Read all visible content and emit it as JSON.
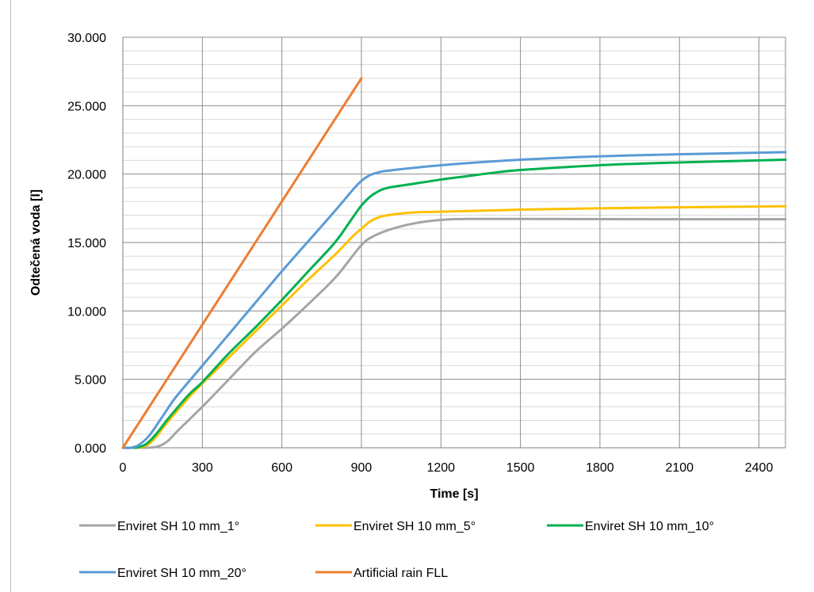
{
  "chart_data": {
    "type": "line",
    "title": "",
    "xlabel": "Time [s]",
    "ylabel": "Odtečená voda [l]",
    "xlim": [
      0,
      2500
    ],
    "ylim": [
      0,
      30000
    ],
    "x_ticks": [
      "0",
      "300",
      "600",
      "900",
      "1200",
      "1500",
      "1800",
      "2100",
      "2400"
    ],
    "x_tick_values": [
      0,
      300,
      600,
      900,
      1200,
      1500,
      1800,
      2100,
      2400
    ],
    "y_ticks": [
      "0.000",
      "5.000",
      "10.000",
      "15.000",
      "20.000",
      "25.000",
      "30.000"
    ],
    "y_tick_values": [
      0,
      5000,
      10000,
      15000,
      20000,
      25000,
      30000
    ],
    "grid": true,
    "legend_position": "bottom",
    "series": [
      {
        "name": "Enviret SH 10 mm_1°",
        "color": "#a5a5a5",
        "points": [
          [
            0,
            0
          ],
          [
            60,
            0
          ],
          [
            110,
            20
          ],
          [
            140,
            150
          ],
          [
            170,
            500
          ],
          [
            210,
            1300
          ],
          [
            300,
            3000
          ],
          [
            400,
            5000
          ],
          [
            500,
            7000
          ],
          [
            600,
            8700
          ],
          [
            700,
            10500
          ],
          [
            800,
            12400
          ],
          [
            870,
            14100
          ],
          [
            900,
            14800
          ],
          [
            930,
            15300
          ],
          [
            1000,
            15900
          ],
          [
            1100,
            16400
          ],
          [
            1200,
            16650
          ],
          [
            1300,
            16720
          ],
          [
            1500,
            16720
          ],
          [
            2000,
            16700
          ],
          [
            2500,
            16700
          ]
        ]
      },
      {
        "name": "Enviret SH 10 mm_5°",
        "color": "#ffc000",
        "points": [
          [
            0,
            0
          ],
          [
            40,
            0
          ],
          [
            70,
            50
          ],
          [
            100,
            300
          ],
          [
            130,
            900
          ],
          [
            170,
            1900
          ],
          [
            250,
            3700
          ],
          [
            300,
            4700
          ],
          [
            400,
            6600
          ],
          [
            500,
            8500
          ],
          [
            600,
            10400
          ],
          [
            700,
            12300
          ],
          [
            800,
            14100
          ],
          [
            870,
            15500
          ],
          [
            900,
            16000
          ],
          [
            930,
            16500
          ],
          [
            960,
            16800
          ],
          [
            1000,
            17000
          ],
          [
            1100,
            17200
          ],
          [
            1200,
            17250
          ],
          [
            1500,
            17400
          ],
          [
            2000,
            17550
          ],
          [
            2500,
            17650
          ]
        ]
      },
      {
        "name": "Enviret SH 10 mm_10°",
        "color": "#00b050",
        "points": [
          [
            0,
            0
          ],
          [
            40,
            0
          ],
          [
            60,
            50
          ],
          [
            90,
            300
          ],
          [
            130,
            1100
          ],
          [
            170,
            2100
          ],
          [
            250,
            3900
          ],
          [
            300,
            4800
          ],
          [
            400,
            6900
          ],
          [
            500,
            8800
          ],
          [
            600,
            10800
          ],
          [
            700,
            12900
          ],
          [
            800,
            15000
          ],
          [
            870,
            16900
          ],
          [
            900,
            17700
          ],
          [
            930,
            18300
          ],
          [
            960,
            18700
          ],
          [
            1000,
            19000
          ],
          [
            1100,
            19300
          ],
          [
            1200,
            19600
          ],
          [
            1300,
            19850
          ],
          [
            1400,
            20100
          ],
          [
            1500,
            20300
          ],
          [
            1800,
            20650
          ],
          [
            2100,
            20850
          ],
          [
            2500,
            21050
          ]
        ]
      },
      {
        "name": "Enviret SH 10 mm_20°",
        "color": "#5b9bd5",
        "points": [
          [
            0,
            0
          ],
          [
            30,
            0
          ],
          [
            60,
            200
          ],
          [
            100,
            900
          ],
          [
            150,
            2300
          ],
          [
            200,
            3700
          ],
          [
            300,
            6000
          ],
          [
            400,
            8300
          ],
          [
            500,
            10600
          ],
          [
            600,
            12900
          ],
          [
            700,
            15100
          ],
          [
            800,
            17300
          ],
          [
            870,
            18900
          ],
          [
            900,
            19500
          ],
          [
            930,
            19900
          ],
          [
            960,
            20100
          ],
          [
            1000,
            20250
          ],
          [
            1200,
            20650
          ],
          [
            1500,
            21050
          ],
          [
            1800,
            21300
          ],
          [
            2100,
            21450
          ],
          [
            2500,
            21600
          ]
        ]
      },
      {
        "name": "Artificial rain FLL",
        "color": "#ed7d31",
        "points": [
          [
            0,
            0
          ],
          [
            900,
            27000
          ]
        ]
      }
    ]
  }
}
